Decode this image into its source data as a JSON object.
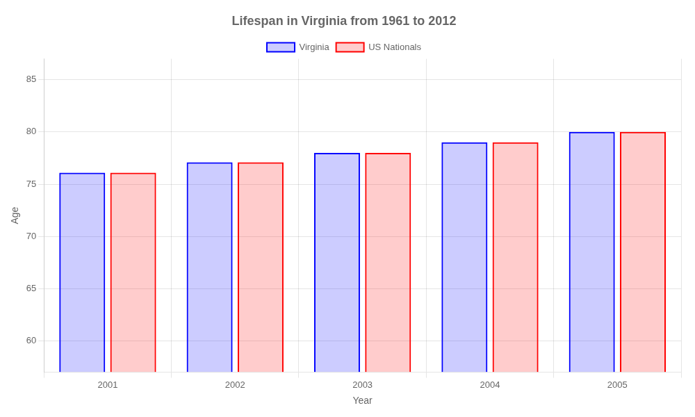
{
  "chart_data": {
    "type": "bar",
    "title": "Lifespan in Virginia from 1961 to 2012",
    "x_label": "Year",
    "y_label": "Age",
    "categories": [
      "2001",
      "2002",
      "2003",
      "2004",
      "2005"
    ],
    "series": [
      {
        "name": "Virginia",
        "color": "#0000ff",
        "values": [
          76.1,
          77.1,
          78.0,
          79.0,
          80.0
        ]
      },
      {
        "name": "US Nationals",
        "color": "#ff0000",
        "values": [
          76.1,
          77.1,
          78.0,
          79.0,
          80.0
        ]
      }
    ],
    "ylim": [
      57,
      87
    ],
    "yticks": [
      60,
      65,
      70,
      75,
      80,
      85
    ],
    "grid": true,
    "legend": "top"
  }
}
